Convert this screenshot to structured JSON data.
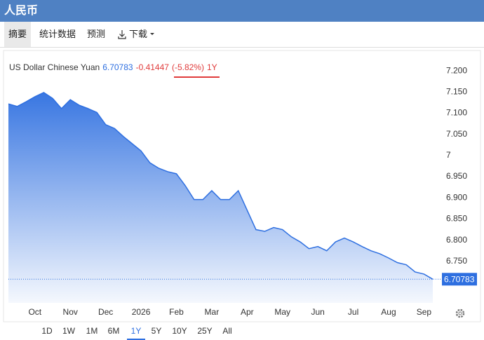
{
  "header": {
    "title": "人民币"
  },
  "tabs": [
    "摘要",
    "统计数据",
    "预测",
    "下载"
  ],
  "chart_data": {
    "type": "area",
    "name": "US Dollar Chinese Yuan",
    "change": "-0.41447",
    "change_pct": "(-5.82%)",
    "period": "1Y",
    "color": "#2e6fe0",
    "categories": [
      null,
      null,
      null,
      "Oct",
      null,
      null,
      null,
      "Nov",
      null,
      null,
      null,
      "Dec",
      null,
      null,
      null,
      "2026",
      null,
      null,
      null,
      "Feb",
      null,
      null,
      null,
      "Mar",
      null,
      null,
      null,
      "Apr",
      null,
      null,
      null,
      "May",
      null,
      null,
      null,
      "Jun",
      null,
      null,
      null,
      "Jul",
      null,
      null,
      null,
      "Aug",
      null,
      null,
      null,
      "Sep",
      null
    ],
    "values": [
      7.122,
      7.116,
      7.127,
      7.139,
      7.149,
      7.135,
      7.111,
      7.132,
      7.119,
      7.111,
      7.102,
      7.073,
      7.064,
      7.045,
      7.028,
      7.011,
      6.983,
      6.97,
      6.962,
      6.957,
      6.929,
      6.896,
      6.896,
      6.917,
      6.896,
      6.896,
      6.917,
      6.871,
      6.825,
      6.821,
      6.83,
      6.825,
      6.808,
      6.796,
      6.78,
      6.785,
      6.775,
      6.796,
      6.805,
      6.796,
      6.785,
      6.775,
      6.768,
      6.758,
      6.747,
      6.742,
      6.725,
      6.72,
      6.70783
    ],
    "ylim": [
      6.652,
      7.235
    ],
    "yticks": [
      {
        "value": 7.2,
        "label": "7.200"
      },
      {
        "value": 7.15,
        "label": "7.150"
      },
      {
        "value": 7.1,
        "label": "7.100"
      },
      {
        "value": 7.05,
        "label": "7.050"
      },
      7,
      {
        "value": 6.95,
        "label": "6.950"
      },
      {
        "value": 6.9,
        "label": "6.900"
      },
      {
        "value": 6.85,
        "label": "6.850"
      },
      {
        "value": 6.8,
        "label": "6.800"
      },
      {
        "value": 6.75,
        "label": "6.750"
      }
    ]
  },
  "range_buttons": [
    "1D",
    "1W",
    "1M",
    "6M",
    "1Y",
    "5Y",
    "10Y",
    "25Y",
    "All"
  ],
  "range_selected": 4
}
